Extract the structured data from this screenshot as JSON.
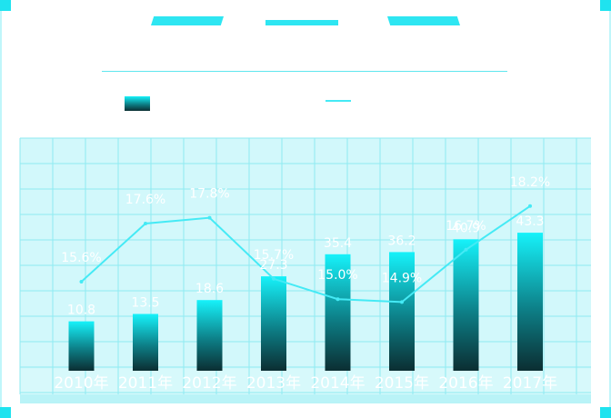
{
  "header": {
    "title": "",
    "accent": "#2ee6f2"
  },
  "legend": {
    "bar_label": "",
    "line_label": ""
  },
  "colors": {
    "grid": "#8eeaf2",
    "plot_bg": "#d2f8fb",
    "bar_top": "#16f2fa",
    "bar_bottom": "#0b2e32",
    "line": "#45eaf5",
    "label": "#ffffff",
    "tick": "#ffffff"
  },
  "chart_data": {
    "type": "bar",
    "title": "",
    "categories": [
      "2010年",
      "2011年",
      "2012年",
      "2013年",
      "2014年",
      "2015年",
      "2016年",
      "2017年"
    ],
    "series": [
      {
        "type": "bar",
        "values": [
          10.8,
          13.5,
          18.6,
          27.3,
          35.4,
          36.2,
          40.9,
          43.3
        ],
        "labels": [
          "10.8",
          "13.5",
          "18.6",
          "27.3",
          "35.4",
          "36.2",
          "40.9",
          "43.3"
        ]
      },
      {
        "type": "line",
        "values": [
          15.6,
          17.6,
          17.8,
          15.7,
          15.0,
          14.9,
          16.7,
          18.2
        ],
        "labels": [
          "15.6%",
          "17.6%",
          "17.8%",
          "15.7%",
          "15.0%",
          "14.9%",
          "16.7%",
          "18.2%"
        ]
      }
    ],
    "grid": true,
    "legend": "top"
  }
}
